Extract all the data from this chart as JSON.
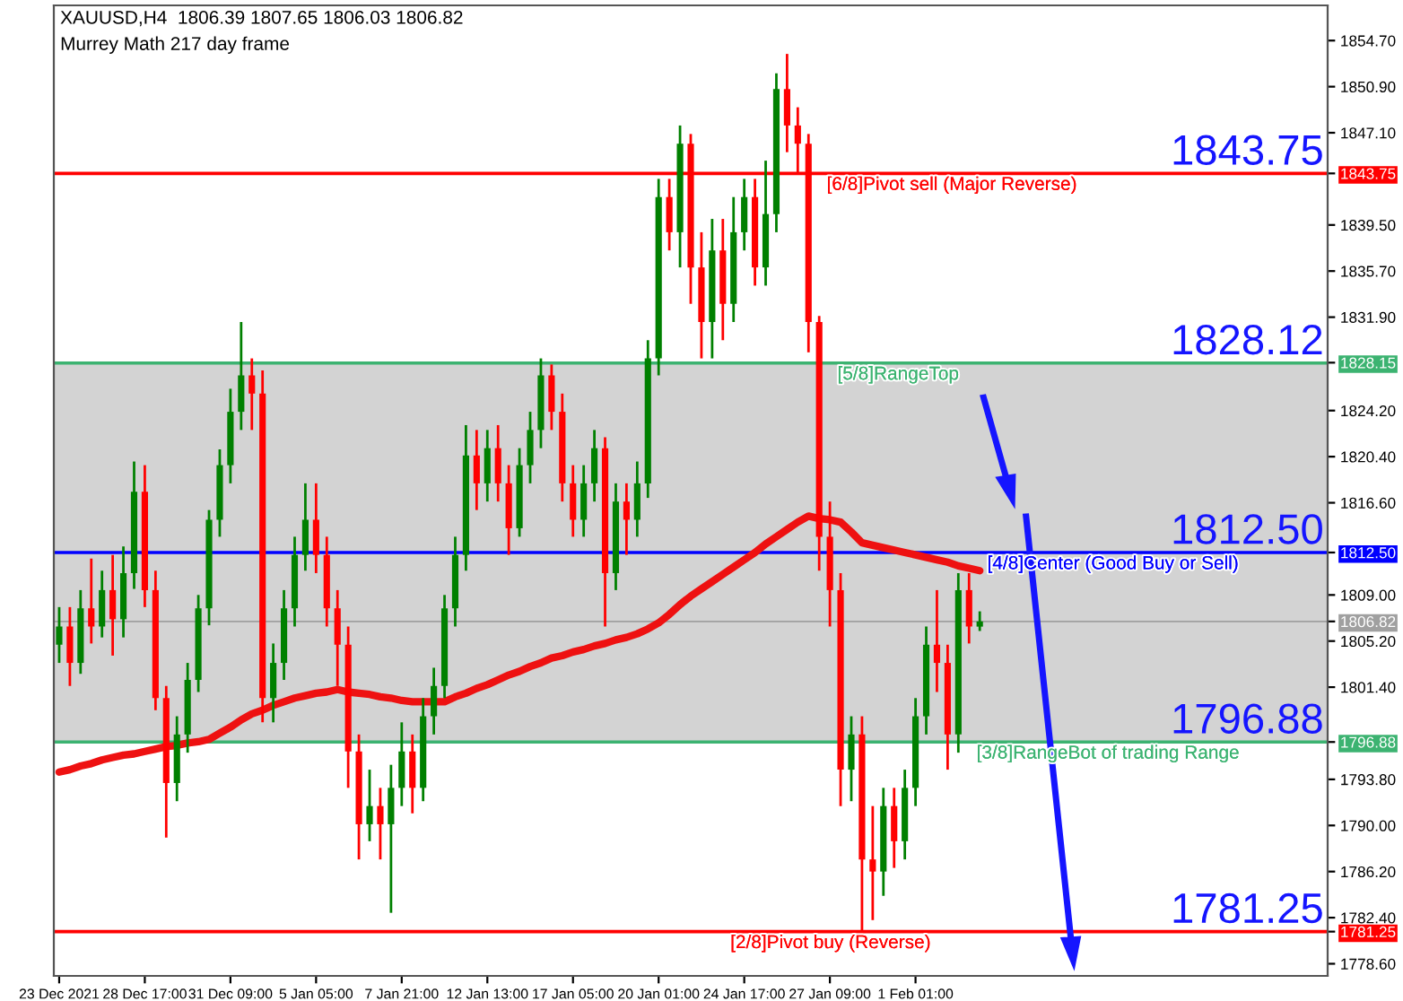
{
  "chart_data": {
    "type": "candlestick",
    "title": "XAUUSD,H4  1806.39 1807.65 1806.03 1806.82",
    "subtitle": "Murrey Math 217 day frame",
    "categories": [
      "23 Dec 2021",
      null,
      null,
      null,
      null,
      null,
      null,
      null,
      "28 Dec 17:00",
      null,
      null,
      null,
      null,
      null,
      null,
      null,
      "31 Dec 09:00",
      null,
      null,
      null,
      null,
      null,
      null,
      null,
      "5 Jan 05:00",
      null,
      null,
      null,
      null,
      null,
      null,
      null,
      "7 Jan 21:00",
      null,
      null,
      null,
      null,
      null,
      null,
      null,
      "12 Jan 13:00",
      null,
      null,
      null,
      null,
      null,
      null,
      null,
      "17 Jan 05:00",
      null,
      null,
      null,
      null,
      null,
      null,
      null,
      "20 Jan 01:00",
      null,
      null,
      null,
      null,
      null,
      null,
      null,
      "24 Jan 17:00",
      null,
      null,
      null,
      null,
      null,
      null,
      null,
      "27 Jan 09:00",
      null,
      null,
      null,
      null,
      null,
      null,
      null,
      "1 Feb 01:00",
      null,
      null,
      null,
      null,
      null,
      null,
      null,
      null,
      null,
      null,
      null,
      null,
      null,
      null,
      null,
      null,
      null,
      null,
      null,
      null,
      null,
      null,
      null,
      null,
      null,
      null,
      null,
      null,
      null,
      null,
      null,
      null,
      null,
      null,
      null,
      null,
      null,
      null
    ],
    "series": [
      {
        "type": "line",
        "color": "#ee1111",
        "values": [
          1794.4,
          1794.6,
          1794.9,
          1795.1,
          1795.4,
          1795.6,
          1795.8,
          1795.9,
          1796.1,
          1796.3,
          1796.5,
          1796.6,
          1796.8,
          1796.9,
          1797.1,
          1797.6,
          1798.1,
          1798.7,
          1799.2,
          1799.5,
          1799.9,
          1800.2,
          1800.5,
          1800.7,
          1800.9,
          1801.0,
          1801.2,
          1801.0,
          1800.9,
          1800.8,
          1800.6,
          1800.5,
          1800.3,
          1800.2,
          1800.2,
          1800.2,
          1800.2,
          1800.6,
          1800.9,
          1801.3,
          1801.6,
          1802.0,
          1802.4,
          1802.7,
          1803.1,
          1803.4,
          1803.8,
          1804.0,
          1804.3,
          1804.5,
          1804.8,
          1805.0,
          1805.3,
          1805.5,
          1805.8,
          1806.2,
          1806.7,
          1807.4,
          1808.2,
          1808.9,
          1809.5,
          1810.1,
          1810.7,
          1811.3,
          1811.9,
          1812.5,
          1813.2,
          1813.8,
          1814.4,
          1815.0,
          1815.5,
          1815.3,
          1815.2,
          1815.0,
          1814.2,
          1813.3,
          1813.1,
          1812.9,
          1812.7,
          1812.5,
          1812.3,
          1812.1,
          1811.9,
          1811.7,
          1811.4,
          1811.2,
          1811.0,
          null,
          null,
          null,
          null,
          null,
          null,
          null,
          null,
          null,
          null,
          null,
          null,
          null,
          null,
          null,
          null,
          null,
          null,
          null,
          null,
          null,
          null,
          null,
          null,
          null,
          null,
          null,
          null,
          null,
          null,
          null,
          null
        ]
      },
      {
        "type": "candlestick",
        "ohlc": [
          [
            1804.9,
            1808,
            1803.4,
            1806.4
          ],
          [
            1806.4,
            1808,
            1801.5,
            1803.4
          ],
          [
            1803.4,
            1809.4,
            1802.5,
            1807.9
          ],
          [
            1807.9,
            1812,
            1805,
            1806.4
          ],
          [
            1806.4,
            1811,
            1805.5,
            1809.4
          ],
          [
            1809.4,
            1812.3,
            1804,
            1807.0
          ],
          [
            1807.0,
            1813,
            1805.5,
            1810.8
          ],
          [
            1810.8,
            1820,
            1809.5,
            1817.5
          ],
          [
            1817.5,
            1819.7,
            1808,
            1809.4
          ],
          [
            1809.4,
            1811,
            1799.5,
            1800.5
          ],
          [
            1800.5,
            1801.5,
            1789.0,
            1793.5
          ],
          [
            1793.5,
            1799,
            1792,
            1797.5
          ],
          [
            1797.5,
            1803.4,
            1796,
            1802.0
          ],
          [
            1802.0,
            1809,
            1801,
            1807.9
          ],
          [
            1807.9,
            1816,
            1806.5,
            1815.2
          ],
          [
            1815.2,
            1821,
            1813.8,
            1819.7
          ],
          [
            1819.7,
            1826,
            1818.2,
            1824.1
          ],
          [
            1824.1,
            1831.5,
            1822.6,
            1827.1
          ],
          [
            1827.1,
            1828.5,
            1822.6,
            1825.6
          ],
          [
            1825.6,
            1827.5,
            1798.5,
            1800.5
          ],
          [
            1800.5,
            1805,
            1798.5,
            1803.4
          ],
          [
            1803.4,
            1809.4,
            1802,
            1807.9
          ],
          [
            1807.9,
            1813.8,
            1806.4,
            1812.3
          ],
          [
            1812.3,
            1818.2,
            1811,
            1815.2
          ],
          [
            1815.2,
            1818.2,
            1810.8,
            1812.3
          ],
          [
            1812.3,
            1813.8,
            1806.4,
            1807.9
          ],
          [
            1807.9,
            1809.4,
            1801.5,
            1804.9
          ],
          [
            1804.9,
            1806.4,
            1793.1,
            1796.1
          ],
          [
            1796.1,
            1797.5,
            1787.2,
            1790.1
          ],
          [
            1790.1,
            1794.6,
            1788.7,
            1791.6
          ],
          [
            1791.6,
            1793.1,
            1787.2,
            1790.1
          ],
          [
            1790.1,
            1795,
            1782.8,
            1793.1
          ],
          [
            1793.1,
            1798.5,
            1791.6,
            1796.1
          ],
          [
            1796.1,
            1797.5,
            1791,
            1793.1
          ],
          [
            1793.1,
            1800.5,
            1792,
            1799.0
          ],
          [
            1799.0,
            1803,
            1797.5,
            1801.5
          ],
          [
            1801.5,
            1809,
            1800.5,
            1807.9
          ],
          [
            1807.9,
            1813.8,
            1806.4,
            1812.3
          ],
          [
            1812.3,
            1823,
            1811,
            1820.5
          ],
          [
            1820.5,
            1822.6,
            1816,
            1818.2
          ],
          [
            1818.2,
            1822.6,
            1816.7,
            1821.1
          ],
          [
            1821.1,
            1823,
            1816.7,
            1818.2
          ],
          [
            1818.2,
            1819.7,
            1812.3,
            1814.5
          ],
          [
            1814.5,
            1821.1,
            1813.8,
            1819.7
          ],
          [
            1819.7,
            1824.1,
            1818.2,
            1822.6
          ],
          [
            1822.6,
            1828.5,
            1821.1,
            1827.1
          ],
          [
            1827.1,
            1828,
            1822.6,
            1824.1
          ],
          [
            1824.1,
            1825.6,
            1816.7,
            1818.2
          ],
          [
            1818.2,
            1819.7,
            1813.8,
            1815.2
          ],
          [
            1815.2,
            1819.7,
            1813.8,
            1818.2
          ],
          [
            1818.2,
            1822.6,
            1816.7,
            1821.1
          ],
          [
            1821.1,
            1822,
            1806.4,
            1810.8
          ],
          [
            1810.8,
            1818.2,
            1809.4,
            1816.7
          ],
          [
            1816.7,
            1818.2,
            1812.3,
            1815.2
          ],
          [
            1815.2,
            1820,
            1813.8,
            1818.2
          ],
          [
            1818.2,
            1830,
            1817,
            1828.5
          ],
          [
            1828.5,
            1843.3,
            1827.1,
            1841.8
          ],
          [
            1841.8,
            1843.3,
            1837.4,
            1838.9
          ],
          [
            1838.9,
            1847.7,
            1836,
            1846.2
          ],
          [
            1846.2,
            1847,
            1833.0,
            1836.0
          ],
          [
            1836.0,
            1838.9,
            1828.5,
            1831.5
          ],
          [
            1831.5,
            1840,
            1828.5,
            1837.4
          ],
          [
            1837.4,
            1840,
            1830,
            1833.0
          ],
          [
            1833.0,
            1841.8,
            1831.5,
            1838.9
          ],
          [
            1838.9,
            1843.3,
            1837.4,
            1841.8
          ],
          [
            1841.8,
            1843.3,
            1834.5,
            1836.0
          ],
          [
            1836.0,
            1844.8,
            1834.5,
            1840.4
          ],
          [
            1840.4,
            1852,
            1838.9,
            1850.7
          ],
          [
            1850.7,
            1853.6,
            1845.5,
            1847.7
          ],
          [
            1847.7,
            1849.2,
            1843.8,
            1846.2
          ],
          [
            1846.2,
            1847,
            1829,
            1831.5
          ],
          [
            1831.5,
            1832,
            1811,
            1813.8
          ],
          [
            1813.8,
            1816.7,
            1806.4,
            1809.4
          ],
          [
            1809.4,
            1810.8,
            1791.6,
            1794.6
          ],
          [
            1794.6,
            1799,
            1792,
            1797.5
          ],
          [
            1797.5,
            1799,
            1781.3,
            1787.2
          ],
          [
            1787.2,
            1791.6,
            1782.2,
            1786.2
          ],
          [
            1786.2,
            1793.1,
            1784.2,
            1791.6
          ],
          [
            1791.6,
            1793.1,
            1786.5,
            1788.7
          ],
          [
            1788.7,
            1794.6,
            1787.2,
            1793.1
          ],
          [
            1793.1,
            1800.5,
            1791.6,
            1799.0
          ],
          [
            1799.0,
            1806.4,
            1797.5,
            1804.9
          ],
          [
            1804.9,
            1809.4,
            1801,
            1803.4
          ],
          [
            1803.4,
            1804.9,
            1794.6,
            1797.5
          ],
          [
            1797.5,
            1810.8,
            1796,
            1809.4
          ],
          [
            1809.4,
            1810.8,
            1805,
            1806.4
          ],
          [
            1806.39,
            1807.65,
            1806.03,
            1806.82
          ],
          null,
          null,
          null,
          null,
          null,
          null,
          null,
          null,
          null,
          null,
          null,
          null,
          null,
          null,
          null,
          null,
          null,
          null,
          null,
          null,
          null,
          null,
          null,
          null,
          null,
          null,
          null,
          null,
          null,
          null,
          null,
          null
        ],
        "colors": [
          "#008000",
          "#ff0000",
          "#008000",
          "#ff0000",
          "#008000",
          "#ff0000",
          "#008000",
          "#008000",
          "#ff0000",
          "#ff0000",
          "#ff0000",
          "#008000",
          "#008000",
          "#008000",
          "#008000",
          "#008000",
          "#008000",
          "#008000",
          "#ff0000",
          "#ff0000",
          "#008000",
          "#008000",
          "#008000",
          "#008000",
          "#ff0000",
          "#ff0000",
          "#ff0000",
          "#ff0000",
          "#ff0000",
          "#008000",
          "#ff0000",
          "#008000",
          "#008000",
          "#ff0000",
          "#008000",
          "#008000",
          "#008000",
          "#008000",
          "#008000",
          "#ff0000",
          "#008000",
          "#ff0000",
          "#ff0000",
          "#008000",
          "#008000",
          "#008000",
          "#ff0000",
          "#ff0000",
          "#ff0000",
          "#008000",
          "#008000",
          "#ff0000",
          "#008000",
          "#ff0000",
          "#008000",
          "#008000",
          "#008000",
          "#ff0000",
          "#008000",
          "#ff0000",
          "#ff0000",
          "#008000",
          "#ff0000",
          "#008000",
          "#008000",
          "#ff0000",
          "#008000",
          "#008000",
          "#ff0000",
          "#ff0000",
          "#ff0000",
          "#ff0000",
          "#ff0000",
          "#ff0000",
          "#008000",
          "#ff0000",
          "#ff0000",
          "#008000",
          "#ff0000",
          "#008000",
          "#008000",
          "#008000",
          "#ff0000",
          "#ff0000",
          "#008000",
          "#ff0000",
          "#008000",
          null,
          null,
          null,
          null,
          null,
          null,
          null,
          null,
          null,
          null,
          null,
          null,
          null,
          null,
          null,
          null,
          null,
          null,
          null,
          null,
          null,
          null,
          null,
          null,
          null,
          null,
          null,
          null,
          null,
          null,
          null,
          null
        ]
      }
    ],
    "ylim": [
      1777.6,
      1857.6
    ],
    "yticks": [
      {
        "value": 1854.7,
        "label": "1854.70"
      },
      {
        "value": 1850.9,
        "label": "1850.90"
      },
      {
        "value": 1847.1,
        "label": "1847.10"
      },
      {
        "value": 1839.5,
        "label": "1839.50"
      },
      {
        "value": 1835.7,
        "label": "1835.70"
      },
      {
        "value": 1831.9,
        "label": "1831.90"
      },
      {
        "value": 1824.2,
        "label": "1824.20"
      },
      {
        "value": 1820.4,
        "label": "1820.40"
      },
      {
        "value": 1816.6,
        "label": "1816.60"
      },
      {
        "value": 1809.0,
        "label": "1809.00"
      },
      {
        "value": 1805.2,
        "label": "1805.20"
      },
      {
        "value": 1801.4,
        "label": "1801.40"
      },
      {
        "value": 1793.8,
        "label": "1793.80"
      },
      {
        "value": 1790.0,
        "label": "1790.00"
      },
      {
        "value": 1786.2,
        "label": "1786.20"
      },
      {
        "value": 1782.4,
        "label": "1782.40"
      },
      {
        "value": 1778.6,
        "label": "1778.60"
      },
      {
        "value": 1843.75,
        "label": "1843.75"
      },
      {
        "value": 1828.15,
        "label": "1828.15"
      },
      {
        "value": 1812.5,
        "label": "1812.50"
      },
      {
        "value": 1806.82,
        "label": "1806.82"
      },
      {
        "value": 1796.88,
        "label": "1796.88"
      },
      {
        "value": 1781.25,
        "label": "1781.25"
      }
    ],
    "bands": [
      {
        "axis": "y",
        "from": 1796.88,
        "to": 1828.12,
        "color": "#d3d3d3"
      }
    ],
    "ref_lines": [
      {
        "axis": "y",
        "value": 1843.75,
        "label": "[6/8]Pivot sell (Major Reverse)",
        "color": "#ff0000"
      },
      {
        "axis": "y",
        "value": 1828.12,
        "label": "[5/8]RangeTop",
        "color": "#3cb371"
      },
      {
        "axis": "y",
        "value": 1812.5,
        "label": "[4/8]Center (Good Buy or Sell)",
        "color": "#0000ff"
      },
      {
        "axis": "y",
        "value": 1806.82,
        "color": "#a0a0a0"
      },
      {
        "axis": "y",
        "value": 1796.88,
        "label": "[3/8]RangeBot of trading Range",
        "color": "#3cb371"
      },
      {
        "axis": "y",
        "value": 1781.25,
        "label": "[2/8]Pivot buy (Reverse)",
        "color": "#ff0000"
      }
    ],
    "annotations": [
      {
        "text": "1843.75",
        "y": 1843.75
      },
      {
        "text": "1828.12",
        "y": 1828.12
      },
      {
        "text": "1812.50",
        "y": 1812.5
      },
      {
        "text": "1796.88",
        "y": 1796.88
      },
      {
        "text": "1781.25",
        "y": 1781.25
      }
    ]
  }
}
